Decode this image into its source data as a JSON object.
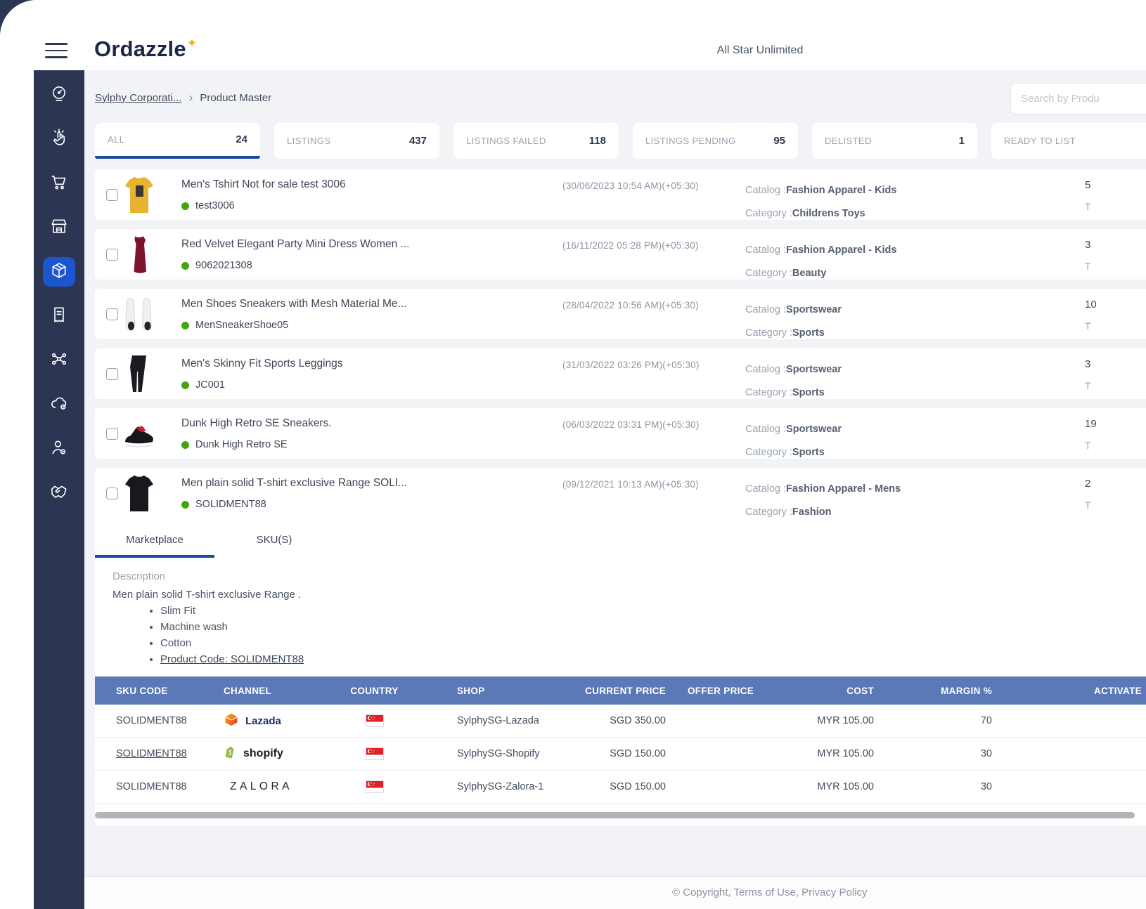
{
  "window": {
    "brand": "Ordazzle",
    "brand_star": "✦",
    "tenant": "All Star Unlimited"
  },
  "breadcrumb": {
    "parent": "Sylphy Corporati...",
    "separator": "›",
    "current": "Product Master"
  },
  "search": {
    "placeholder": "Search by Produ"
  },
  "colors": {
    "sidebar_navy": "#2c3551",
    "accent_blue": "#1c56cf",
    "underline_blue": "#1c4da4",
    "table_header_blue": "#5b79b7",
    "status_green": "#44a411",
    "brand_star_orange": "#f5a623"
  },
  "sidebar": {
    "items": [
      {
        "icon": "dashboard-icon",
        "active": false
      },
      {
        "icon": "click-icon",
        "active": false
      },
      {
        "icon": "cart-icon",
        "active": false
      },
      {
        "icon": "store-icon",
        "active": false
      },
      {
        "icon": "products-icon",
        "active": true
      },
      {
        "icon": "orders-icon",
        "active": false
      },
      {
        "icon": "network-icon",
        "active": false
      },
      {
        "icon": "cloud-sync-icon",
        "active": false
      },
      {
        "icon": "user-settings-icon",
        "active": false
      },
      {
        "icon": "handshake-icon",
        "active": false
      }
    ]
  },
  "tabs": [
    {
      "label": "ALL",
      "count": "24",
      "active": true
    },
    {
      "label": "LISTINGS",
      "count": "437",
      "active": false
    },
    {
      "label": "LISTINGS FAILED",
      "count": "118",
      "active": false
    },
    {
      "label": "LISTINGS PENDING",
      "count": "95",
      "active": false
    },
    {
      "label": "DELISTED",
      "count": "1",
      "active": false
    },
    {
      "label": "READY TO LIST",
      "count": "",
      "active": false
    }
  ],
  "labels": {
    "catalog": "Catalog :",
    "category": "Category :"
  },
  "products": [
    {
      "title": "Men's Tshirt Not for sale test 3006",
      "sku": "test3006",
      "timestamp": "(30/06/2023 10:54 AM)(+05:30)",
      "catalog": "Fashion Apparel - Kids",
      "category": "Childrens Toys",
      "count": "5",
      "count_label": "T",
      "image": "tshirt-yellow",
      "expanded": false
    },
    {
      "title": "Red Velvet Elegant Party Mini Dress Women ...",
      "sku": "9062021308",
      "timestamp": "(16/11/2022 05:28 PM)(+05:30)",
      "catalog": "Fashion Apparel - Kids",
      "category": "Beauty",
      "count": "3",
      "count_label": "T",
      "image": "dress-red",
      "expanded": false
    },
    {
      "title": "Men Shoes Sneakers with Mesh Material Me...",
      "sku": "MenSneakerShoe05",
      "timestamp": "(28/04/2022 10:56 AM)(+05:30)",
      "catalog": "Sportswear",
      "category": "Sports",
      "count": "10",
      "count_label": "T",
      "image": "sneakers-white",
      "expanded": false
    },
    {
      "title": "Men's Skinny Fit Sports Leggings",
      "sku": "JC001",
      "timestamp": "(31/03/2022 03:26 PM)(+05:30)",
      "catalog": "Sportswear",
      "category": "Sports",
      "count": "3",
      "count_label": "T",
      "image": "leggings-black",
      "expanded": false
    },
    {
      "title": "Dunk High Retro SE Sneakers.",
      "sku": "Dunk High Retro SE",
      "timestamp": "(06/03/2022 03:31 PM)(+05:30)",
      "catalog": "Sportswear",
      "category": "Sports",
      "count": "19",
      "count_label": "T",
      "image": "sneaker-black-red",
      "expanded": false
    },
    {
      "title": "Men plain solid T-shirt exclusive Range SOLI...",
      "sku": "SOLIDMENT88",
      "timestamp": "(09/12/2021 10:13 AM)(+05:30)",
      "catalog": "Fashion Apparel - Mens",
      "category": "Fashion",
      "count": "2",
      "count_label": "T",
      "image": "tshirt-black",
      "expanded": true
    }
  ],
  "detail": {
    "tabs": [
      {
        "label": "Marketplace",
        "active": true
      },
      {
        "label": "SKU(S)",
        "active": false
      }
    ],
    "description_heading": "Description",
    "description_text": "Men plain solid T-shirt exclusive Range .",
    "bullets": [
      "Slim Fit",
      "Machine wash",
      "Cotton"
    ],
    "product_code_link": "Product Code: SOLIDMENT88",
    "table": {
      "columns": [
        "SKU CODE",
        "CHANNEL",
        "COUNTRY",
        "SHOP",
        "CURRENT PRICE",
        "OFFER PRICE",
        "COST",
        "MARGIN %",
        "ACTIVATE"
      ],
      "rows": [
        {
          "sku": "SOLIDMENT88",
          "sku_link": false,
          "channel": "lazada",
          "channel_name": "Lazada",
          "country": "singapore-flag",
          "shop": "SylphySG-Lazada",
          "current_price": "SGD 350.00",
          "offer_price": "",
          "cost": "MYR 105.00",
          "margin": "70",
          "activate": ""
        },
        {
          "sku": "SOLIDMENT88",
          "sku_link": true,
          "channel": "shopify",
          "channel_name": "shopify",
          "country": "singapore-flag",
          "shop": "SylphySG-Shopify",
          "current_price": "SGD 150.00",
          "offer_price": "",
          "cost": "MYR 105.00",
          "margin": "30",
          "activate": ""
        },
        {
          "sku": "SOLIDMENT88",
          "sku_link": false,
          "channel": "zalora",
          "channel_name": "ZALORA",
          "country": "singapore-flag",
          "shop": "SylphySG-Zalora-1",
          "current_price": "SGD 150.00",
          "offer_price": "",
          "cost": "MYR 105.00",
          "margin": "30",
          "activate": ""
        }
      ]
    }
  },
  "footer": {
    "text": "© Copyright, Terms of Use, Privacy Policy"
  }
}
